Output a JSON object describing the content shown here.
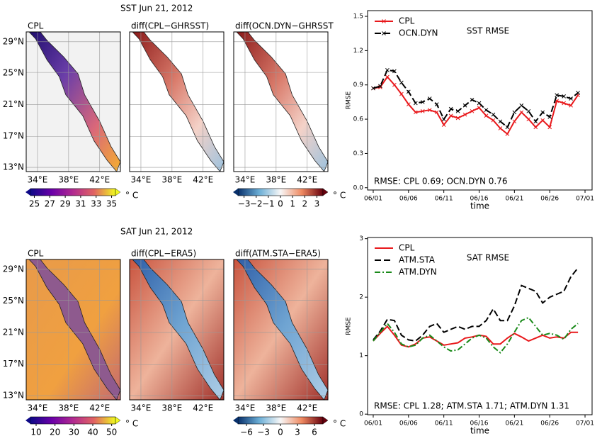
{
  "maps": [
    {
      "title": "SST   Jun 21, 2012",
      "panels": [
        "CPL",
        "diff(CPL−GHRSST)",
        "diff(OCN.DYN−GHRSST"
      ],
      "lat_labels": [
        "29°N",
        "25°N",
        "21°N",
        "17°N",
        "13°N"
      ],
      "lon_labels": [
        "34°E",
        "38°E",
        "42°E"
      ],
      "unit": "° C",
      "colorbars": [
        {
          "range": [
            24.5,
            35.5
          ],
          "ticks": [
            25,
            27,
            29,
            31,
            33,
            35
          ]
        },
        {
          "range": [
            -3.5,
            3.5
          ],
          "ticks": [
            {
              "value": -3,
              "label": "−3"
            },
            {
              "value": -2,
              "label": "−2"
            },
            {
              "value": -1,
              "label": "−1"
            },
            0,
            1,
            2,
            3
          ]
        }
      ]
    },
    {
      "title": "SAT   Jun 21, 2012",
      "panels": [
        "CPL",
        "diff(CPL−ERA5)",
        "diff(ATM.STA−ERA5)"
      ],
      "lat_labels": [
        "29°N",
        "25°N",
        "21°N",
        "17°N",
        "13°N"
      ],
      "lon_labels": [
        "34°E",
        "38°E",
        "42°E"
      ],
      "unit": "° C",
      "colorbars": [
        {
          "range": [
            7,
            52
          ],
          "ticks": [
            10,
            20,
            30,
            40,
            50
          ]
        },
        {
          "range": [
            -7.5,
            7.5
          ],
          "ticks": [
            {
              "value": -6,
              "label": "−6"
            },
            {
              "value": -3,
              "label": "−3"
            },
            0,
            3,
            6
          ]
        }
      ]
    }
  ],
  "chart_data": [
    {
      "type": "line",
      "title": "SST RMSE",
      "y_label": "RMSE",
      "x_label": "time",
      "annotation": "RMSE: CPL 0.69; OCN.DYN 0.76",
      "legend": "upper left",
      "x": [
        1,
        2,
        3,
        4,
        5,
        6,
        7,
        8,
        9,
        10,
        11,
        12,
        13,
        14,
        15,
        16,
        17,
        18,
        19,
        20,
        21,
        22,
        23,
        24,
        25,
        26,
        27,
        28,
        29,
        30
      ],
      "xlim": [
        0.2,
        32
      ],
      "xticks": [
        {
          "value": 1,
          "label": "06/01"
        },
        {
          "value": 6,
          "label": "06/06"
        },
        {
          "value": 11,
          "label": "06/11"
        },
        {
          "value": 16,
          "label": "06/16"
        },
        {
          "value": 21,
          "label": "06/21"
        },
        {
          "value": 26,
          "label": "06/26"
        },
        {
          "value": 31,
          "label": "07/01"
        }
      ],
      "ylim": [
        -0.02,
        1.55
      ],
      "yticks": [
        {
          "value": 0,
          "label": "0.0"
        },
        0.3,
        0.6,
        0.9,
        1.2,
        1.5
      ],
      "series": [
        {
          "name": "CPL",
          "color": "#e8191c",
          "dash": "solid",
          "marker": "x",
          "values": [
            0.87,
            0.88,
            0.97,
            0.9,
            0.82,
            0.73,
            0.66,
            0.67,
            0.68,
            0.66,
            0.55,
            0.63,
            0.61,
            0.64,
            0.67,
            0.7,
            0.63,
            0.59,
            0.52,
            0.47,
            0.58,
            0.66,
            0.6,
            0.53,
            0.59,
            0.53,
            0.76,
            0.74,
            0.72,
            0.81
          ]
        },
        {
          "name": "OCN.DYN",
          "color": "#000000",
          "dash": "dashed",
          "marker": "x",
          "values": [
            0.87,
            0.89,
            1.03,
            1.02,
            0.92,
            0.84,
            0.74,
            0.75,
            0.78,
            0.73,
            0.6,
            0.69,
            0.67,
            0.72,
            0.77,
            0.74,
            0.68,
            0.64,
            0.58,
            0.53,
            0.66,
            0.72,
            0.67,
            0.58,
            0.66,
            0.62,
            0.81,
            0.8,
            0.78,
            0.83
          ]
        }
      ]
    },
    {
      "type": "line",
      "title": "SAT RMSE",
      "y_label": "RMSE",
      "x_label": "time",
      "annotation": "RMSE: CPL 1.28; ATM.STA 1.71; ATM.DYN 1.31",
      "legend": "upper left",
      "x": [
        1,
        2,
        3,
        4,
        5,
        6,
        7,
        8,
        9,
        10,
        11,
        12,
        13,
        14,
        15,
        16,
        17,
        18,
        19,
        20,
        21,
        22,
        23,
        24,
        25,
        26,
        27,
        28,
        29,
        30
      ],
      "xlim": [
        0.2,
        32
      ],
      "xticks": [
        {
          "value": 1,
          "label": "06/01"
        },
        {
          "value": 6,
          "label": "06/06"
        },
        {
          "value": 11,
          "label": "06/11"
        },
        {
          "value": 16,
          "label": "06/16"
        },
        {
          "value": 21,
          "label": "06/21"
        },
        {
          "value": 26,
          "label": "06/26"
        },
        {
          "value": 31,
          "label": "07/01"
        }
      ],
      "ylim": [
        -0.01,
        3.02
      ],
      "yticks": [
        0,
        1,
        2,
        3
      ],
      "series": [
        {
          "name": "CPL",
          "color": "#e8191c",
          "dash": "solid",
          "values": [
            1.25,
            1.38,
            1.5,
            1.35,
            1.18,
            1.15,
            1.2,
            1.3,
            1.32,
            1.25,
            1.18,
            1.2,
            1.22,
            1.3,
            1.32,
            1.35,
            1.33,
            1.2,
            1.2,
            1.3,
            1.38,
            1.32,
            1.25,
            1.3,
            1.35,
            1.3,
            1.32,
            1.3,
            1.4,
            1.4
          ]
        },
        {
          "name": "ATM.STA",
          "color": "#000000",
          "dash": "dashed",
          "values": [
            1.27,
            1.42,
            1.62,
            1.6,
            1.35,
            1.27,
            1.25,
            1.35,
            1.5,
            1.55,
            1.4,
            1.45,
            1.5,
            1.45,
            1.5,
            1.5,
            1.6,
            1.8,
            1.6,
            1.6,
            1.85,
            2.2,
            2.15,
            2.1,
            1.9,
            2.0,
            2.05,
            2.1,
            2.35,
            2.5
          ]
        },
        {
          "name": "ATM.DYN",
          "color": "#1a8a1a",
          "dash": "dashdot",
          "values": [
            1.25,
            1.4,
            1.55,
            1.4,
            1.2,
            1.15,
            1.18,
            1.3,
            1.35,
            1.25,
            1.15,
            1.08,
            1.1,
            1.2,
            1.3,
            1.35,
            1.3,
            1.15,
            1.05,
            1.2,
            1.4,
            1.6,
            1.65,
            1.5,
            1.35,
            1.38,
            1.35,
            1.28,
            1.45,
            1.55
          ]
        }
      ]
    }
  ]
}
